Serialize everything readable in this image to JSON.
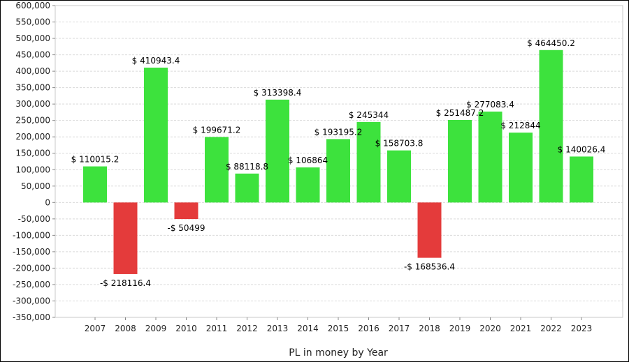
{
  "chart_data": {
    "type": "bar",
    "xlabel": "PL in money by Year",
    "ylabel": "",
    "ylim": [
      -350000,
      600000
    ],
    "y_tick_step": 50000,
    "grid": true,
    "legend": "none",
    "colors": {
      "positive": "#3de23d",
      "negative": "#e43b3b",
      "grid": "#d9d9d9",
      "plot_border": "#c8c8c8"
    },
    "categories": [
      "2007",
      "2008",
      "2009",
      "2010",
      "2011",
      "2012",
      "2013",
      "2014",
      "2015",
      "2016",
      "2017",
      "2018",
      "2019",
      "2020",
      "2021",
      "2022",
      "2023"
    ],
    "values": [
      110015.2,
      -218116.4,
      410943.4,
      -50499,
      199671.2,
      88118.8,
      313398.4,
      106864,
      193195.2,
      245344,
      158703.8,
      -168536.4,
      251487.2,
      277083.4,
      212844,
      464450.2,
      140026.4
    ],
    "data_labels": [
      "$ 110015.2",
      "-$ 218116.4",
      "$ 410943.4",
      "-$ 50499",
      "$ 199671.2",
      "$ 88118.8",
      "$ 313398.4",
      "$ 106864",
      "$ 193195.2",
      "$ 245344",
      "$ 158703.8",
      "-$ 168536.4",
      "$ 251487.2",
      "$ 277083.4",
      "$ 212844",
      "$ 464450.2",
      "$ 140026.4"
    ],
    "y_tick_labels": [
      "600,000",
      "550,000",
      "500,000",
      "450,000",
      "400,000",
      "350,000",
      "300,000",
      "250,000",
      "200,000",
      "150,000",
      "100,000",
      "50,000",
      "0",
      "-50,000",
      "-100,000",
      "-150,000",
      "-200,000",
      "-250,000",
      "-300,000",
      "-350,000"
    ]
  }
}
